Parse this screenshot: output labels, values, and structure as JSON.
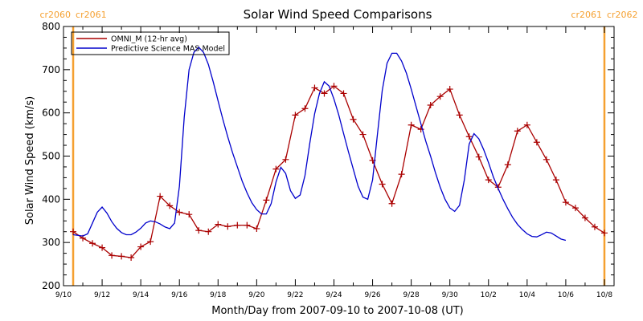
{
  "chart_data": {
    "type": "line",
    "title": "Solar Wind Speed Comparisons",
    "xlabel": "Month/Day from 2007-09-10 to 2007-10-08 (UT)",
    "ylabel": "Solar Wind Speed (km/s)",
    "xlim": [
      "2007-09-10T00:00",
      "2007-10-08T12:00"
    ],
    "ylim": [
      200,
      800
    ],
    "yticks": [
      200,
      300,
      400,
      500,
      600,
      700,
      800
    ],
    "xticks": [
      {
        "date": "2007-09-10T00:00",
        "label": "9/10"
      },
      {
        "date": "2007-09-12T00:00",
        "label": "9/12"
      },
      {
        "date": "2007-09-14T00:00",
        "label": "9/14"
      },
      {
        "date": "2007-09-16T00:00",
        "label": "9/16"
      },
      {
        "date": "2007-09-18T00:00",
        "label": "9/18"
      },
      {
        "date": "2007-09-20T00:00",
        "label": "9/20"
      },
      {
        "date": "2007-09-22T00:00",
        "label": "9/22"
      },
      {
        "date": "2007-09-24T00:00",
        "label": "9/24"
      },
      {
        "date": "2007-09-26T00:00",
        "label": "9/26"
      },
      {
        "date": "2007-09-28T00:00",
        "label": "9/28"
      },
      {
        "date": "2007-09-30T00:00",
        "label": "9/30"
      },
      {
        "date": "2007-10-02T00:00",
        "label": "10/2"
      },
      {
        "date": "2007-10-04T00:00",
        "label": "10/4"
      },
      {
        "date": "2007-10-06T00:00",
        "label": "10/6"
      },
      {
        "date": "2007-10-08T00:00",
        "label": "10/8"
      }
    ],
    "legend": "top-left",
    "grid": false,
    "series": [
      {
        "name": "OMNI_M (12-hr avg)",
        "color": "#aa0000",
        "marker": "plus",
        "points": [
          [
            "2007-09-10T12:00",
            325
          ],
          [
            "2007-09-11T00:00",
            310
          ],
          [
            "2007-09-11T12:00",
            298
          ],
          [
            "2007-09-12T00:00",
            288
          ],
          [
            "2007-09-12T12:00",
            270
          ],
          [
            "2007-09-13T00:00",
            268
          ],
          [
            "2007-09-13T12:00",
            265
          ],
          [
            "2007-09-14T00:00",
            290
          ],
          [
            "2007-09-14T12:00",
            302
          ],
          [
            "2007-09-15T00:00",
            407
          ],
          [
            "2007-09-15T12:00",
            385
          ],
          [
            "2007-09-16T00:00",
            370
          ],
          [
            "2007-09-16T12:00",
            365
          ],
          [
            "2007-09-17T00:00",
            328
          ],
          [
            "2007-09-17T12:00",
            325
          ],
          [
            "2007-09-18T00:00",
            342
          ],
          [
            "2007-09-18T12:00",
            337
          ],
          [
            "2007-09-19T00:00",
            340
          ],
          [
            "2007-09-19T12:00",
            340
          ],
          [
            "2007-09-20T00:00",
            332
          ],
          [
            "2007-09-20T12:00",
            398
          ],
          [
            "2007-09-21T00:00",
            470
          ],
          [
            "2007-09-21T12:00",
            492
          ],
          [
            "2007-09-22T00:00",
            595
          ],
          [
            "2007-09-22T12:00",
            610
          ],
          [
            "2007-09-23T00:00",
            658
          ],
          [
            "2007-09-23T12:00",
            645
          ],
          [
            "2007-09-24T00:00",
            662
          ],
          [
            "2007-09-24T12:00",
            645
          ],
          [
            "2007-09-25T00:00",
            585
          ],
          [
            "2007-09-25T12:00",
            550
          ],
          [
            "2007-09-26T00:00",
            490
          ],
          [
            "2007-09-26T12:00",
            435
          ],
          [
            "2007-09-27T00:00",
            390
          ],
          [
            "2007-09-27T12:00",
            458
          ],
          [
            "2007-09-28T00:00",
            572
          ],
          [
            "2007-09-28T12:00",
            562
          ],
          [
            "2007-09-29T00:00",
            618
          ],
          [
            "2007-09-29T12:00",
            638
          ],
          [
            "2007-09-30T00:00",
            655
          ],
          [
            "2007-09-30T12:00",
            595
          ],
          [
            "2007-10-01T00:00",
            545
          ],
          [
            "2007-10-01T12:00",
            498
          ],
          [
            "2007-10-02T00:00",
            445
          ],
          [
            "2007-10-02T12:00",
            428
          ],
          [
            "2007-10-03T00:00",
            480
          ],
          [
            "2007-10-03T12:00",
            558
          ],
          [
            "2007-10-04T00:00",
            572
          ],
          [
            "2007-10-04T12:00",
            532
          ],
          [
            "2007-10-05T00:00",
            492
          ],
          [
            "2007-10-05T12:00",
            445
          ],
          [
            "2007-10-06T00:00",
            393
          ],
          [
            "2007-10-06T12:00",
            380
          ],
          [
            "2007-10-07T00:00",
            357
          ],
          [
            "2007-10-07T12:00",
            336
          ],
          [
            "2007-10-08T00:00",
            322
          ]
        ]
      },
      {
        "name": "Predictive Science MAS Model",
        "color": "#0000cc",
        "marker": "none",
        "points": [
          [
            "2007-09-10T12:00",
            318
          ],
          [
            "2007-09-11T00:00",
            315
          ],
          [
            "2007-09-11T06:00",
            320
          ],
          [
            "2007-09-11T12:00",
            345
          ],
          [
            "2007-09-11T18:00",
            370
          ],
          [
            "2007-09-12T00:00",
            382
          ],
          [
            "2007-09-12T06:00",
            368
          ],
          [
            "2007-09-12T12:00",
            348
          ],
          [
            "2007-09-12T18:00",
            333
          ],
          [
            "2007-09-13T00:00",
            323
          ],
          [
            "2007-09-13T06:00",
            318
          ],
          [
            "2007-09-13T12:00",
            318
          ],
          [
            "2007-09-13T18:00",
            324
          ],
          [
            "2007-09-14T00:00",
            333
          ],
          [
            "2007-09-14T06:00",
            345
          ],
          [
            "2007-09-14T12:00",
            350
          ],
          [
            "2007-09-14T18:00",
            348
          ],
          [
            "2007-09-15T00:00",
            343
          ],
          [
            "2007-09-15T06:00",
            336
          ],
          [
            "2007-09-15T12:00",
            332
          ],
          [
            "2007-09-15T18:00",
            345
          ],
          [
            "2007-09-16T00:00",
            430
          ],
          [
            "2007-09-16T06:00",
            590
          ],
          [
            "2007-09-16T12:00",
            700
          ],
          [
            "2007-09-16T18:00",
            740
          ],
          [
            "2007-09-17T00:00",
            752
          ],
          [
            "2007-09-17T06:00",
            740
          ],
          [
            "2007-09-17T12:00",
            712
          ],
          [
            "2007-09-17T18:00",
            672
          ],
          [
            "2007-09-18T00:00",
            628
          ],
          [
            "2007-09-18T06:00",
            585
          ],
          [
            "2007-09-18T12:00",
            545
          ],
          [
            "2007-09-18T18:00",
            508
          ],
          [
            "2007-09-19T00:00",
            475
          ],
          [
            "2007-09-19T06:00",
            442
          ],
          [
            "2007-09-19T12:00",
            415
          ],
          [
            "2007-09-19T18:00",
            392
          ],
          [
            "2007-09-20T00:00",
            376
          ],
          [
            "2007-09-20T06:00",
            366
          ],
          [
            "2007-09-20T12:00",
            366
          ],
          [
            "2007-09-20T18:00",
            390
          ],
          [
            "2007-09-21T00:00",
            440
          ],
          [
            "2007-09-21T06:00",
            474
          ],
          [
            "2007-09-21T12:00",
            460
          ],
          [
            "2007-09-21T18:00",
            420
          ],
          [
            "2007-09-22T00:00",
            402
          ],
          [
            "2007-09-22T06:00",
            410
          ],
          [
            "2007-09-22T12:00",
            455
          ],
          [
            "2007-09-22T18:00",
            530
          ],
          [
            "2007-09-23T00:00",
            598
          ],
          [
            "2007-09-23T06:00",
            645
          ],
          [
            "2007-09-23T12:00",
            672
          ],
          [
            "2007-09-23T18:00",
            662
          ],
          [
            "2007-09-24T00:00",
            632
          ],
          [
            "2007-09-24T06:00",
            595
          ],
          [
            "2007-09-24T12:00",
            552
          ],
          [
            "2007-09-24T18:00",
            510
          ],
          [
            "2007-09-25T00:00",
            470
          ],
          [
            "2007-09-25T06:00",
            430
          ],
          [
            "2007-09-25T12:00",
            405
          ],
          [
            "2007-09-25T18:00",
            400
          ],
          [
            "2007-09-26T00:00",
            445
          ],
          [
            "2007-09-26T06:00",
            550
          ],
          [
            "2007-09-26T12:00",
            652
          ],
          [
            "2007-09-26T18:00",
            715
          ],
          [
            "2007-09-27T00:00",
            738
          ],
          [
            "2007-09-27T06:00",
            738
          ],
          [
            "2007-09-27T12:00",
            720
          ],
          [
            "2007-09-27T18:00",
            692
          ],
          [
            "2007-09-28T00:00",
            655
          ],
          [
            "2007-09-28T06:00",
            615
          ],
          [
            "2007-09-28T12:00",
            575
          ],
          [
            "2007-09-28T18:00",
            535
          ],
          [
            "2007-09-29T00:00",
            500
          ],
          [
            "2007-09-29T06:00",
            462
          ],
          [
            "2007-09-29T12:00",
            428
          ],
          [
            "2007-09-29T18:00",
            400
          ],
          [
            "2007-09-30T00:00",
            380
          ],
          [
            "2007-09-30T06:00",
            372
          ],
          [
            "2007-09-30T12:00",
            386
          ],
          [
            "2007-09-30T18:00",
            445
          ],
          [
            "2007-10-01T00:00",
            528
          ],
          [
            "2007-10-01T06:00",
            552
          ],
          [
            "2007-10-01T12:00",
            540
          ],
          [
            "2007-10-01T18:00",
            515
          ],
          [
            "2007-10-02T00:00",
            485
          ],
          [
            "2007-10-02T06:00",
            452
          ],
          [
            "2007-10-02T12:00",
            425
          ],
          [
            "2007-10-02T18:00",
            400
          ],
          [
            "2007-10-03T00:00",
            378
          ],
          [
            "2007-10-03T06:00",
            358
          ],
          [
            "2007-10-03T12:00",
            342
          ],
          [
            "2007-10-03T18:00",
            330
          ],
          [
            "2007-10-04T00:00",
            320
          ],
          [
            "2007-10-04T06:00",
            314
          ],
          [
            "2007-10-04T12:00",
            313
          ],
          [
            "2007-10-04T18:00",
            318
          ],
          [
            "2007-10-05T00:00",
            324
          ],
          [
            "2007-10-05T06:00",
            322
          ],
          [
            "2007-10-05T12:00",
            315
          ],
          [
            "2007-10-05T18:00",
            308
          ],
          [
            "2007-10-06T00:00",
            305
          ]
        ]
      }
    ],
    "annotations": [
      {
        "date": "2007-09-10T12:00",
        "left_label": "cr2060",
        "right_label": "cr2061",
        "color": "#f5a030"
      },
      {
        "date": "2007-10-08T00:00",
        "left_label": "cr2061",
        "right_label": "cr2062",
        "color": "#f5a030"
      }
    ]
  }
}
